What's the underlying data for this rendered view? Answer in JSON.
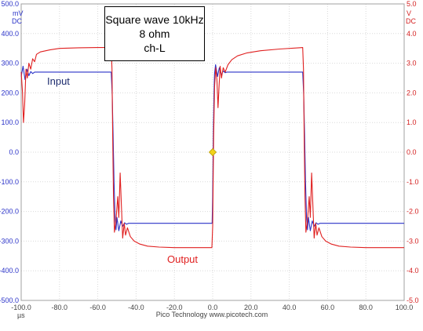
{
  "chart_data": {
    "type": "line",
    "title_lines": [
      "Square wave 10kHz",
      "8 ohm",
      "ch-L"
    ],
    "footer": "Pico Technology  www.picotech.com",
    "x_unit": "µs",
    "xlim": [
      -100,
      100
    ],
    "x_ticks": [
      "-100.0",
      "-80.0",
      "-60.0",
      "-40.0",
      "-20.0",
      "0.0",
      "20.0",
      "40.0",
      "60.0",
      "80.0",
      "100.0"
    ],
    "y_left": {
      "unit": "mV",
      "coupling": "DC",
      "ylim": [
        -500,
        500
      ],
      "ticks": [
        "500.0",
        "400.0",
        "300.0",
        "200.0",
        "100.0",
        "0.0",
        "-100.0",
        "-200.0",
        "-300.0",
        "-400.0",
        "-500.0"
      ]
    },
    "y_right": {
      "unit": "V",
      "coupling": "DC",
      "ylim": [
        -5,
        5
      ],
      "ticks": [
        "5.0",
        "4.0",
        "3.0",
        "2.0",
        "1.0",
        "0.0",
        "-1.0",
        "-2.0",
        "-3.0",
        "-4.0",
        "-5.0"
      ]
    },
    "grid": true,
    "trigger_marker": {
      "x": 0,
      "y_mV": 0
    },
    "series": [
      {
        "name": "Input",
        "axis": "left",
        "color": "#2a32c8",
        "points": [
          [
            -100,
            255
          ],
          [
            -99,
            290
          ],
          [
            -98,
            245
          ],
          [
            -97,
            280
          ],
          [
            -96,
            258
          ],
          [
            -95,
            272
          ],
          [
            -94,
            265
          ],
          [
            -93,
            270
          ],
          [
            -90,
            270
          ],
          [
            -80,
            270
          ],
          [
            -70,
            270
          ],
          [
            -60,
            270
          ],
          [
            -53,
            270
          ],
          [
            -52.5,
            200
          ],
          [
            -52,
            60
          ],
          [
            -51.5,
            -100
          ],
          [
            -51,
            -220
          ],
          [
            -50.5,
            -262
          ],
          [
            -50,
            -220
          ],
          [
            -49,
            -265
          ],
          [
            -48,
            -232
          ],
          [
            -47,
            -250
          ],
          [
            -46,
            -238
          ],
          [
            -45,
            -243
          ],
          [
            -44,
            -240
          ],
          [
            -20,
            -240
          ],
          [
            -0.3,
            -240
          ],
          [
            0,
            -150
          ],
          [
            0.3,
            40
          ],
          [
            0.7,
            200
          ],
          [
            1,
            265
          ],
          [
            1.5,
            295
          ],
          [
            2.5,
            255
          ],
          [
            3.5,
            285
          ],
          [
            4.5,
            260
          ],
          [
            5.5,
            274
          ],
          [
            6.5,
            268
          ],
          [
            7.5,
            270
          ],
          [
            30,
            270
          ],
          [
            47,
            270
          ],
          [
            47.5,
            200
          ],
          [
            48,
            60
          ],
          [
            48.5,
            -100
          ],
          [
            49,
            -220
          ],
          [
            49.5,
            -262
          ],
          [
            50,
            -220
          ],
          [
            51,
            -265
          ],
          [
            52,
            -232
          ],
          [
            53,
            -250
          ],
          [
            54,
            -238
          ],
          [
            55,
            -243
          ],
          [
            56,
            -240
          ],
          [
            100,
            -240
          ]
        ]
      },
      {
        "name": "Output",
        "axis": "right",
        "color": "#e02020",
        "points": [
          [
            -100,
            2.7
          ],
          [
            -99.3,
            2.0
          ],
          [
            -98.8,
            1.0
          ],
          [
            -98.2,
            1.6
          ],
          [
            -97.5,
            2.8
          ],
          [
            -96.8,
            2.5
          ],
          [
            -96,
            3.0
          ],
          [
            -95,
            2.8
          ],
          [
            -94,
            3.15
          ],
          [
            -93,
            3.05
          ],
          [
            -92,
            3.3
          ],
          [
            -90,
            3.38
          ],
          [
            -85,
            3.45
          ],
          [
            -80,
            3.5
          ],
          [
            -70,
            3.52
          ],
          [
            -60,
            3.53
          ],
          [
            -53,
            3.53
          ],
          [
            -52.6,
            2.8
          ],
          [
            -52.2,
            0.5
          ],
          [
            -51.8,
            -1.5
          ],
          [
            -51.3,
            -2.7
          ],
          [
            -50.5,
            -2.3
          ],
          [
            -49.6,
            -1.5
          ],
          [
            -49,
            -2.2
          ],
          [
            -48.3,
            -0.7
          ],
          [
            -47.8,
            -1.6
          ],
          [
            -47,
            -2.9
          ],
          [
            -46.2,
            -2.4
          ],
          [
            -45.5,
            -2.8
          ],
          [
            -44.5,
            -2.55
          ],
          [
            -43,
            -2.85
          ],
          [
            -41,
            -3.0
          ],
          [
            -38,
            -3.1
          ],
          [
            -34,
            -3.17
          ],
          [
            -28,
            -3.2
          ],
          [
            -20,
            -3.22
          ],
          [
            -0.4,
            -3.22
          ],
          [
            0,
            -2.5
          ],
          [
            0.5,
            0.5
          ],
          [
            1,
            2.2
          ],
          [
            1.6,
            2.85
          ],
          [
            2.2,
            2.45
          ],
          [
            2.8,
            1.5
          ],
          [
            3.3,
            2.2
          ],
          [
            3.9,
            2.9
          ],
          [
            4.6,
            2.5
          ],
          [
            5.5,
            2.85
          ],
          [
            6.5,
            2.7
          ],
          [
            8,
            2.95
          ],
          [
            10,
            3.12
          ],
          [
            13,
            3.25
          ],
          [
            18,
            3.35
          ],
          [
            25,
            3.42
          ],
          [
            35,
            3.48
          ],
          [
            45,
            3.52
          ],
          [
            47,
            3.53
          ],
          [
            47.4,
            2.8
          ],
          [
            47.8,
            0.5
          ],
          [
            48.2,
            -1.5
          ],
          [
            48.7,
            -2.7
          ],
          [
            49.5,
            -2.3
          ],
          [
            50.4,
            -1.5
          ],
          [
            51,
            -2.2
          ],
          [
            51.7,
            -0.7
          ],
          [
            52.2,
            -1.6
          ],
          [
            53,
            -2.9
          ],
          [
            53.8,
            -2.4
          ],
          [
            54.5,
            -2.8
          ],
          [
            55.5,
            -2.55
          ],
          [
            57,
            -2.85
          ],
          [
            59,
            -3.0
          ],
          [
            62,
            -3.1
          ],
          [
            66,
            -3.17
          ],
          [
            72,
            -3.2
          ],
          [
            80,
            -3.22
          ],
          [
            100,
            -3.22
          ]
        ]
      }
    ],
    "annotations": [
      {
        "text": "Input",
        "color": "#1c2b6e"
      },
      {
        "text": "Output",
        "color": "#e02020"
      }
    ]
  }
}
